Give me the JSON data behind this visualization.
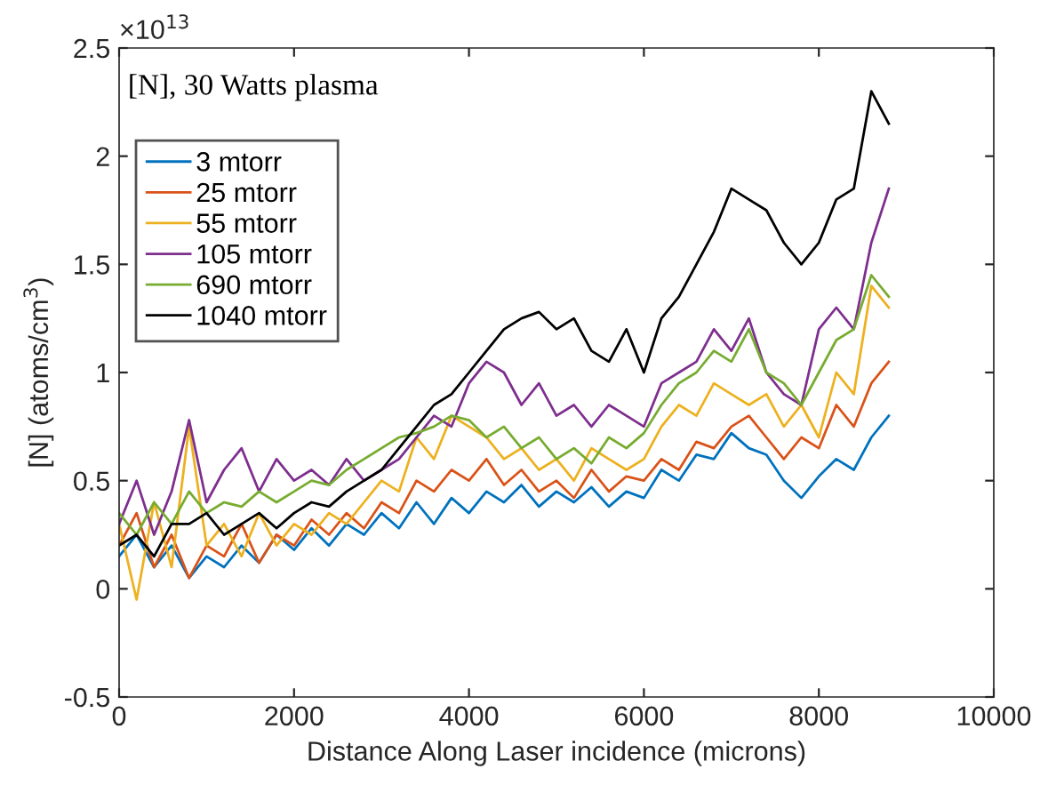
{
  "chart_data": {
    "type": "line",
    "title": "[N], 30 Watts plasma",
    "xlabel": "Distance Along Laser incidence (microns)",
    "ylabel": "[N] (atoms/cm$^{3}$)",
    "annotations": [
      "×10$^{13}$"
    ],
    "x": [
      0,
      200,
      400,
      600,
      800,
      1000,
      1200,
      1400,
      1600,
      1800,
      2000,
      2200,
      2400,
      2600,
      2800,
      3000,
      3200,
      3400,
      3600,
      3800,
      4000,
      4200,
      4400,
      4600,
      4800,
      5000,
      5200,
      5400,
      5600,
      5800,
      6000,
      6200,
      6400,
      6600,
      6800,
      7000,
      7200,
      7400,
      7600,
      7800,
      8000,
      8200,
      8400,
      8600,
      8800
    ],
    "series": [
      {
        "name": "3 mtorr",
        "color": "#0072bd",
        "values": [
          0.15,
          0.25,
          0.1,
          0.2,
          0.05,
          0.15,
          0.1,
          0.2,
          0.12,
          0.25,
          0.18,
          0.28,
          0.2,
          0.3,
          0.25,
          0.35,
          0.28,
          0.4,
          0.3,
          0.42,
          0.35,
          0.45,
          0.4,
          0.48,
          0.38,
          0.45,
          0.4,
          0.47,
          0.38,
          0.45,
          0.42,
          0.55,
          0.5,
          0.62,
          0.6,
          0.72,
          0.65,
          0.62,
          0.5,
          0.42,
          0.52,
          0.6,
          0.55,
          0.7,
          0.8
        ]
      },
      {
        "name": "25 mtorr",
        "color": "#d95319",
        "values": [
          0.2,
          0.35,
          0.1,
          0.25,
          0.05,
          0.2,
          0.15,
          0.3,
          0.12,
          0.25,
          0.2,
          0.32,
          0.25,
          0.35,
          0.28,
          0.4,
          0.35,
          0.5,
          0.45,
          0.55,
          0.5,
          0.6,
          0.48,
          0.55,
          0.45,
          0.5,
          0.42,
          0.55,
          0.45,
          0.52,
          0.5,
          0.6,
          0.55,
          0.68,
          0.65,
          0.75,
          0.8,
          0.7,
          0.6,
          0.7,
          0.65,
          0.85,
          0.75,
          0.95,
          1.05
        ]
      },
      {
        "name": "55 mtorr",
        "color": "#edb120",
        "values": [
          0.3,
          -0.05,
          0.4,
          0.1,
          0.75,
          0.2,
          0.3,
          0.15,
          0.35,
          0.2,
          0.3,
          0.25,
          0.35,
          0.3,
          0.4,
          0.5,
          0.45,
          0.7,
          0.6,
          0.8,
          0.75,
          0.7,
          0.6,
          0.65,
          0.55,
          0.6,
          0.5,
          0.65,
          0.6,
          0.55,
          0.6,
          0.75,
          0.85,
          0.8,
          0.95,
          0.9,
          0.85,
          0.9,
          0.75,
          0.85,
          0.7,
          1.0,
          0.9,
          1.4,
          1.3
        ]
      },
      {
        "name": "105 mtorr",
        "color": "#7e2f8e",
        "values": [
          0.3,
          0.5,
          0.25,
          0.45,
          0.78,
          0.4,
          0.55,
          0.65,
          0.45,
          0.6,
          0.5,
          0.55,
          0.48,
          0.6,
          0.5,
          0.55,
          0.6,
          0.7,
          0.8,
          0.75,
          0.95,
          1.05,
          1.0,
          0.85,
          0.95,
          0.8,
          0.85,
          0.75,
          0.85,
          0.8,
          0.75,
          0.95,
          1.0,
          1.05,
          1.2,
          1.1,
          1.25,
          1.0,
          0.9,
          0.85,
          1.2,
          1.3,
          1.2,
          1.6,
          1.85
        ]
      },
      {
        "name": "690 mtorr",
        "color": "#77ac30",
        "values": [
          0.35,
          0.25,
          0.4,
          0.3,
          0.45,
          0.35,
          0.4,
          0.38,
          0.45,
          0.4,
          0.45,
          0.5,
          0.48,
          0.55,
          0.6,
          0.65,
          0.7,
          0.72,
          0.75,
          0.8,
          0.78,
          0.7,
          0.75,
          0.65,
          0.7,
          0.6,
          0.65,
          0.58,
          0.7,
          0.65,
          0.72,
          0.85,
          0.95,
          1.0,
          1.1,
          1.05,
          1.2,
          1.0,
          0.95,
          0.85,
          1.0,
          1.15,
          1.2,
          1.45,
          1.35
        ]
      },
      {
        "name": "1040 mtorr",
        "color": "#000000",
        "values": [
          0.2,
          0.25,
          0.15,
          0.3,
          0.3,
          0.35,
          0.25,
          0.3,
          0.35,
          0.28,
          0.35,
          0.4,
          0.38,
          0.45,
          0.5,
          0.55,
          0.65,
          0.75,
          0.85,
          0.9,
          1.0,
          1.1,
          1.2,
          1.25,
          1.28,
          1.2,
          1.25,
          1.1,
          1.05,
          1.2,
          1.0,
          1.25,
          1.35,
          1.5,
          1.65,
          1.85,
          1.8,
          1.75,
          1.6,
          1.5,
          1.6,
          1.8,
          1.85,
          2.3,
          2.15
        ]
      }
    ],
    "xlim": [
      0,
      10000
    ],
    "xticks": [
      0,
      2000,
      4000,
      6000,
      8000,
      10000
    ],
    "ylim": [
      -0.5,
      2.5
    ],
    "yticks": [
      -0.5,
      0,
      0.5,
      1,
      1.5,
      2,
      2.5
    ],
    "legend": "top left",
    "grid": false,
    "line_style": "solid"
  }
}
